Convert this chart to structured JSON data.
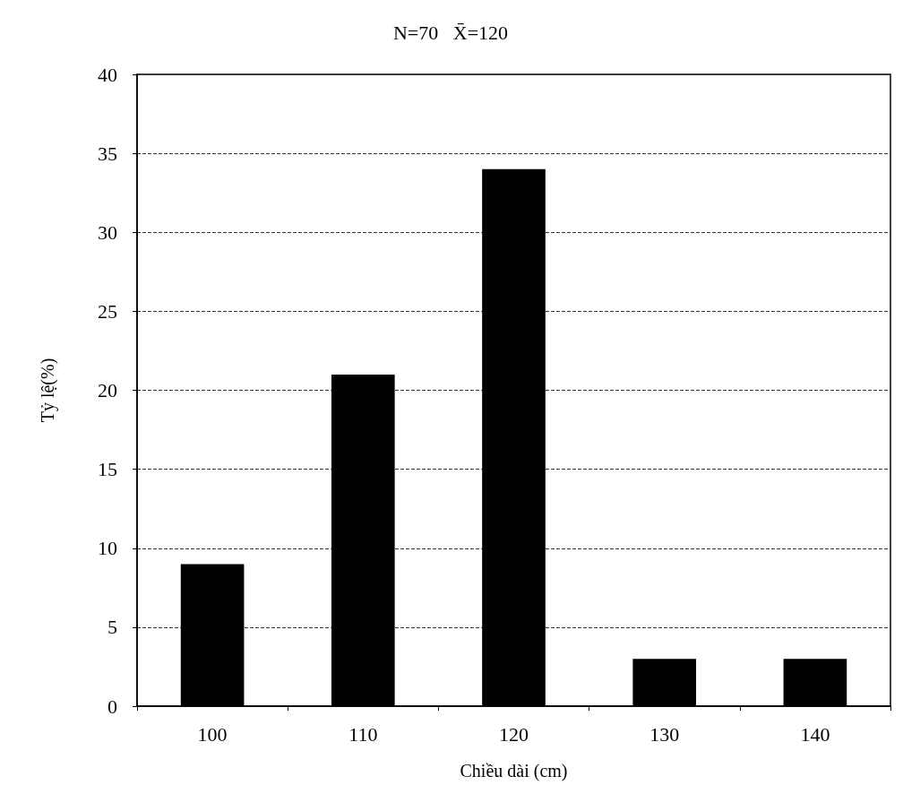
{
  "chart_data": {
    "type": "bar",
    "title": "N=70   X̄=120",
    "xlabel": "Chiều dài (cm)",
    "ylabel": "Tỷ lệ(%)",
    "categories": [
      "100",
      "110",
      "120",
      "130",
      "140"
    ],
    "values": [
      9,
      21,
      34,
      3,
      3
    ],
    "color": "#000000",
    "ylim": [
      0,
      40
    ],
    "yticks": [
      0,
      5,
      10,
      15,
      20,
      25,
      30,
      35,
      40
    ],
    "grid": "y"
  }
}
